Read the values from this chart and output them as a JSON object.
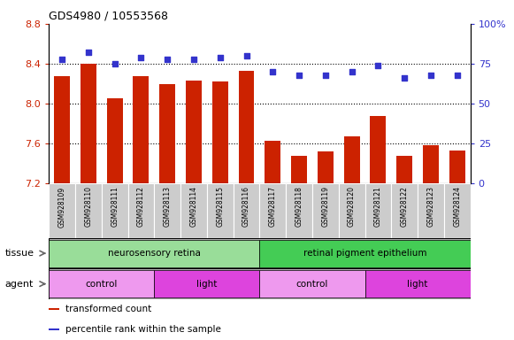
{
  "title": "GDS4980 / 10553568",
  "samples": [
    "GSM928109",
    "GSM928110",
    "GSM928111",
    "GSM928112",
    "GSM928113",
    "GSM928114",
    "GSM928115",
    "GSM928116",
    "GSM928117",
    "GSM928118",
    "GSM928119",
    "GSM928120",
    "GSM928121",
    "GSM928122",
    "GSM928123",
    "GSM928124"
  ],
  "bar_values": [
    8.28,
    8.4,
    8.05,
    8.28,
    8.2,
    8.23,
    8.22,
    8.33,
    7.63,
    7.48,
    7.52,
    7.67,
    7.88,
    7.48,
    7.58,
    7.53
  ],
  "dot_values": [
    78,
    82,
    75,
    79,
    78,
    78,
    79,
    80,
    70,
    68,
    68,
    70,
    74,
    66,
    68,
    68
  ],
  "bar_color": "#cc2200",
  "dot_color": "#3333cc",
  "ylim_left": [
    7.2,
    8.8
  ],
  "ylim_right": [
    0,
    100
  ],
  "yticks_left": [
    7.2,
    7.6,
    8.0,
    8.4,
    8.8
  ],
  "yticks_right": [
    0,
    25,
    50,
    75,
    100
  ],
  "yticklabels_right": [
    "0",
    "25",
    "50",
    "75",
    "100%"
  ],
  "hlines": [
    7.6,
    8.0,
    8.4
  ],
  "tissue_labels": [
    {
      "text": "neurosensory retina",
      "start": 0,
      "end": 7,
      "color": "#99dd99"
    },
    {
      "text": "retinal pigment epithelium",
      "start": 8,
      "end": 15,
      "color": "#44cc55"
    }
  ],
  "agent_labels": [
    {
      "text": "control",
      "start": 0,
      "end": 3,
      "color": "#ee99ee"
    },
    {
      "text": "light",
      "start": 4,
      "end": 7,
      "color": "#dd44dd"
    },
    {
      "text": "control",
      "start": 8,
      "end": 11,
      "color": "#ee99ee"
    },
    {
      "text": "light",
      "start": 12,
      "end": 15,
      "color": "#dd44dd"
    }
  ],
  "legend_items": [
    {
      "label": "transformed count",
      "color": "#cc2200"
    },
    {
      "label": "percentile rank within the sample",
      "color": "#3333cc"
    }
  ],
  "bg_color": "#ffffff",
  "tick_label_left_color": "#cc2200",
  "tick_label_right_color": "#3333cc",
  "xtick_bg_color": "#cccccc",
  "tissue_row_label": "tissue",
  "agent_row_label": "agent",
  "row_label_color": "#777777"
}
